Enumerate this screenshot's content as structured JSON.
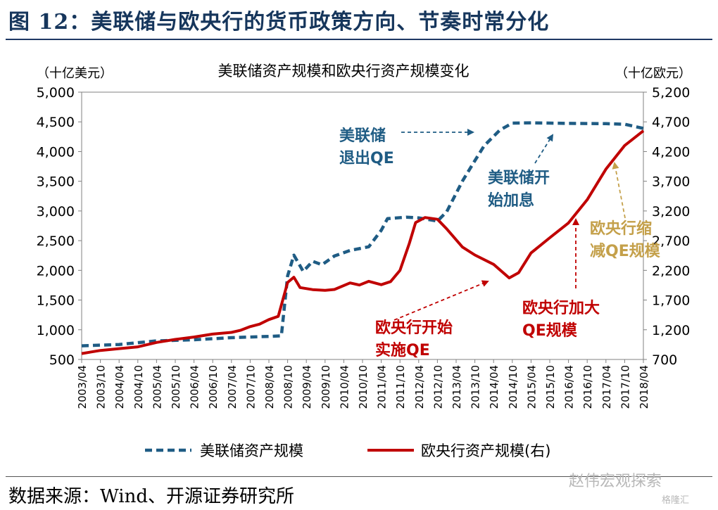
{
  "figure_title": "图 12：美联储与欧央行的货币政策方向、节奏时常分化",
  "source": "数据来源：Wind、开源证券研究所",
  "watermark": "赵伟宏观探索",
  "watermark2": "格隆汇",
  "colors": {
    "fed": "#1f5c84",
    "ecb": "#c00000",
    "ecb_taper": "#c4a04a",
    "title": "#16365c"
  },
  "chart_data": {
    "type": "line",
    "title": "美联储资产规模和欧央行资产规模变化",
    "y_left_unit": "（十亿美元）",
    "y_right_unit": "（十亿欧元）",
    "y_left": {
      "min": 500,
      "max": 5000,
      "ticks": [
        "5,000",
        "4,500",
        "4,000",
        "3,500",
        "3,000",
        "2,500",
        "2,000",
        "1,500",
        "1,000",
        "500"
      ]
    },
    "y_right": {
      "min": 700,
      "max": 5200,
      "ticks": [
        "5,200",
        "4,700",
        "4,200",
        "3,700",
        "3,200",
        "2,700",
        "2,200",
        "1,700",
        "1,200",
        "700"
      ]
    },
    "x_ticks": [
      "2003/04",
      "2003/10",
      "2004/04",
      "2004/10",
      "2005/04",
      "2005/10",
      "2006/04",
      "2006/10",
      "2007/04",
      "2007/10",
      "2008/04",
      "2008/10",
      "2009/04",
      "2009/10",
      "2010/04",
      "2010/10",
      "2011/04",
      "2011/10",
      "2012/04",
      "2012/10",
      "2013/04",
      "2013/10",
      "2014/04",
      "2014/10",
      "2015/04",
      "2015/10",
      "2016/04",
      "2016/10",
      "2017/04",
      "2017/10",
      "2018/04"
    ],
    "series": [
      {
        "name": "美联储资产规模",
        "axis": "left",
        "style": "dashed",
        "points": [
          [
            "2003/04",
            730
          ],
          [
            "2004/04",
            760
          ],
          [
            "2005/04",
            810
          ],
          [
            "2006/04",
            840
          ],
          [
            "2007/04",
            870
          ],
          [
            "2008/04",
            880
          ],
          [
            "2008/08",
            900
          ],
          [
            "2008/10",
            1900
          ],
          [
            "2008/12",
            2250
          ],
          [
            "2009/03",
            1990
          ],
          [
            "2009/06",
            2150
          ],
          [
            "2009/09",
            2100
          ],
          [
            "2010/01",
            2250
          ],
          [
            "2010/06",
            2330
          ],
          [
            "2010/12",
            2400
          ],
          [
            "2011/04",
            2670
          ],
          [
            "2011/06",
            2860
          ],
          [
            "2011/12",
            2900
          ],
          [
            "2012/04",
            2880
          ],
          [
            "2012/10",
            2830
          ],
          [
            "2013/01",
            3000
          ],
          [
            "2013/06",
            3500
          ],
          [
            "2013/10",
            3850
          ],
          [
            "2014/01",
            4100
          ],
          [
            "2014/06",
            4350
          ],
          [
            "2014/10",
            4480
          ],
          [
            "2015/04",
            4480
          ],
          [
            "2016/04",
            4470
          ],
          [
            "2017/04",
            4480
          ],
          [
            "2017/10",
            4460
          ],
          [
            "2018/04",
            4390
          ]
        ]
      },
      {
        "name": "欧央行资产规模(右)",
        "axis": "right",
        "style": "solid",
        "points": [
          [
            "2003/04",
            800
          ],
          [
            "2003/10",
            860
          ],
          [
            "2004/04",
            880
          ],
          [
            "2004/10",
            920
          ],
          [
            "2005/04",
            990
          ],
          [
            "2005/10",
            1030
          ],
          [
            "2006/04",
            1080
          ],
          [
            "2006/10",
            1120
          ],
          [
            "2007/04",
            1150
          ],
          [
            "2007/07",
            1200
          ],
          [
            "2007/10",
            1250
          ],
          [
            "2008/01",
            1300
          ],
          [
            "2008/04",
            1380
          ],
          [
            "2008/07",
            1420
          ],
          [
            "2008/10",
            2000
          ],
          [
            "2008/12",
            2080
          ],
          [
            "2009/02",
            1900
          ],
          [
            "2009/06",
            1880
          ],
          [
            "2009/10",
            1860
          ],
          [
            "2010/01",
            1880
          ],
          [
            "2010/06",
            2000
          ],
          [
            "2010/09",
            1950
          ],
          [
            "2010/12",
            2020
          ],
          [
            "2011/04",
            1960
          ],
          [
            "2011/07",
            2000
          ],
          [
            "2011/10",
            2200
          ],
          [
            "2012/01",
            2650
          ],
          [
            "2012/03",
            3000
          ],
          [
            "2012/06",
            3100
          ],
          [
            "2012/10",
            3060
          ],
          [
            "2013/01",
            2900
          ],
          [
            "2013/06",
            2600
          ],
          [
            "2013/10",
            2450
          ],
          [
            "2014/04",
            2300
          ],
          [
            "2014/09",
            2070
          ],
          [
            "2014/12",
            2150
          ],
          [
            "2015/04",
            2500
          ],
          [
            "2015/10",
            2750
          ],
          [
            "2016/04",
            3000
          ],
          [
            "2016/10",
            3400
          ],
          [
            "2017/04",
            3900
          ],
          [
            "2017/10",
            4300
          ],
          [
            "2018/04",
            4550
          ]
        ]
      }
    ],
    "annotations": [
      {
        "id": "fed-exit-qe",
        "color": "fed",
        "lines": [
          "美联储",
          "退出QE"
        ]
      },
      {
        "id": "fed-hike",
        "color": "fed",
        "lines": [
          "美联储开",
          "始加息"
        ]
      },
      {
        "id": "ecb-start-qe",
        "color": "ecb",
        "lines": [
          "欧央行开始",
          "实施QE"
        ]
      },
      {
        "id": "ecb-expand-qe",
        "color": "ecb",
        "lines": [
          "欧央行加大",
          "QE规模"
        ]
      },
      {
        "id": "ecb-taper",
        "color": "ecb_taper",
        "lines": [
          "欧央行缩",
          "减QE规模"
        ]
      }
    ],
    "legend": {
      "placement": "bottom"
    },
    "grid": false
  }
}
